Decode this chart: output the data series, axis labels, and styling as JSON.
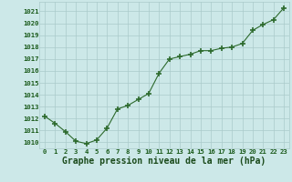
{
  "x": [
    0,
    1,
    2,
    3,
    4,
    5,
    6,
    7,
    8,
    9,
    10,
    11,
    12,
    13,
    14,
    15,
    16,
    17,
    18,
    19,
    20,
    21,
    22,
    23
  ],
  "y": [
    1012.2,
    1011.6,
    1010.9,
    1010.1,
    1009.9,
    1010.2,
    1011.2,
    1012.8,
    1013.1,
    1013.6,
    1014.1,
    1015.8,
    1017.0,
    1017.2,
    1017.4,
    1017.7,
    1017.7,
    1017.9,
    1018.0,
    1018.3,
    1019.4,
    1019.9,
    1020.3,
    1021.3
  ],
  "line_color": "#2d6a2d",
  "marker": "+",
  "marker_size": 4,
  "marker_linewidth": 1.2,
  "bg_color": "#cce8e8",
  "grid_color": "#aacaca",
  "xlabel": "Graphe pression niveau de la mer (hPa)",
  "xlabel_color": "#1a4a1a",
  "tick_color": "#1a5a1a",
  "ylim": [
    1009.5,
    1021.8
  ],
  "xlim": [
    -0.5,
    23.5
  ],
  "xlabel_fontsize": 7.0,
  "yticks": [
    1010,
    1011,
    1012,
    1013,
    1014,
    1015,
    1016,
    1017,
    1018,
    1019,
    1020,
    1021
  ],
  "xticks": [
    0,
    1,
    2,
    3,
    4,
    5,
    6,
    7,
    8,
    9,
    10,
    11,
    12,
    13,
    14,
    15,
    16,
    17,
    18,
    19,
    20,
    21,
    22,
    23
  ]
}
